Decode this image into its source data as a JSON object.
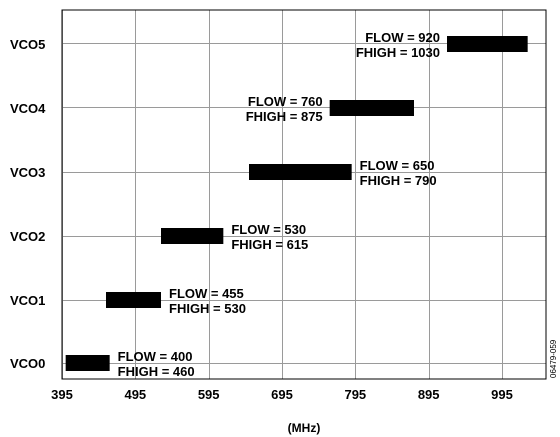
{
  "chart_data": {
    "type": "bar",
    "orientation": "horizontal-range",
    "title": "",
    "xlabel": "(MHz)",
    "ylabel": "",
    "xlim": [
      395,
      1055
    ],
    "xticks": [
      395,
      495,
      595,
      695,
      795,
      895,
      995
    ],
    "grid": true,
    "categories": [
      "VCO0",
      "VCO1",
      "VCO2",
      "VCO3",
      "VCO4",
      "VCO5"
    ],
    "ranges": [
      {
        "category": "VCO0",
        "flow": 400,
        "fhigh": 460,
        "label_flow": "FLOW = 400",
        "label_fhigh": "FHIGH = 460",
        "label_side": "right"
      },
      {
        "category": "VCO1",
        "flow": 455,
        "fhigh": 530,
        "label_flow": "FLOW = 455",
        "label_fhigh": "FHIGH = 530",
        "label_side": "right"
      },
      {
        "category": "VCO2",
        "flow": 530,
        "fhigh": 615,
        "label_flow": "FLOW = 530",
        "label_fhigh": "FHIGH = 615",
        "label_side": "right"
      },
      {
        "category": "VCO3",
        "flow": 650,
        "fhigh": 790,
        "label_flow": "FLOW = 650",
        "label_fhigh": "FHIGH = 790",
        "label_side": "right"
      },
      {
        "category": "VCO4",
        "flow": 760,
        "fhigh": 875,
        "label_flow": "FLOW = 760",
        "label_fhigh": "FHIGH = 875",
        "label_side": "left"
      },
      {
        "category": "VCO5",
        "flow": 920,
        "fhigh": 1030,
        "label_flow": "FLOW = 920",
        "label_fhigh": "FHIGH = 1030",
        "label_side": "left"
      }
    ],
    "bar_color": "#000000",
    "figure_id": "06479-059"
  }
}
